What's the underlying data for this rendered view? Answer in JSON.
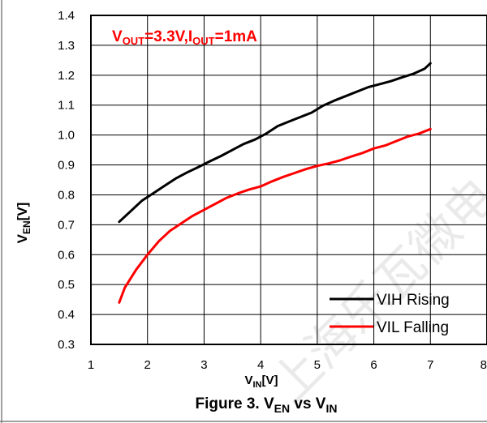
{
  "chart_data": {
    "type": "line",
    "title": "",
    "annotation": {
      "main": "V",
      "sub1": "OUT",
      "mid": "=3.3V,I",
      "sub2": "OUT",
      "end": "=1mA"
    },
    "xlabel": {
      "main": "V",
      "sub": "IN",
      "suffix": "[V]"
    },
    "ylabel": {
      "main": "V",
      "sub": "EN",
      "suffix": "[V]"
    },
    "xlim": [
      1,
      8
    ],
    "ylim": [
      0.3,
      1.4
    ],
    "x_ticks": [
      1,
      2,
      3,
      4,
      5,
      6,
      7,
      8
    ],
    "y_ticks": [
      0.3,
      0.4,
      0.5,
      0.6,
      0.7,
      0.8,
      0.9,
      1.0,
      1.1,
      1.2,
      1.3,
      1.4
    ],
    "grid": true,
    "legend_position": "bottom-right",
    "series": [
      {
        "name": "VIH Rising",
        "color": "#000000",
        "x": [
          1.5,
          1.7,
          1.9,
          2.1,
          2.3,
          2.5,
          2.7,
          2.9,
          3.1,
          3.3,
          3.5,
          3.7,
          3.9,
          4.1,
          4.3,
          4.5,
          4.7,
          4.9,
          5.1,
          5.3,
          5.5,
          5.7,
          5.9,
          6.1,
          6.3,
          6.5,
          6.7,
          6.9,
          7.0
        ],
        "y": [
          0.71,
          0.745,
          0.78,
          0.805,
          0.83,
          0.855,
          0.875,
          0.893,
          0.912,
          0.93,
          0.95,
          0.97,
          0.985,
          1.005,
          1.03,
          1.045,
          1.06,
          1.075,
          1.098,
          1.115,
          1.13,
          1.145,
          1.16,
          1.17,
          1.18,
          1.193,
          1.205,
          1.222,
          1.24
        ]
      },
      {
        "name": "VIL Falling",
        "color": "#ff0000",
        "x": [
          1.5,
          1.6,
          1.8,
          2.0,
          2.2,
          2.4,
          2.6,
          2.8,
          3.0,
          3.2,
          3.4,
          3.6,
          3.8,
          4.0,
          4.2,
          4.4,
          4.6,
          4.8,
          5.0,
          5.2,
          5.4,
          5.6,
          5.8,
          6.0,
          6.2,
          6.4,
          6.6,
          6.8,
          7.0
        ],
        "y": [
          0.44,
          0.49,
          0.55,
          0.6,
          0.645,
          0.68,
          0.705,
          0.73,
          0.75,
          0.77,
          0.79,
          0.805,
          0.818,
          0.828,
          0.845,
          0.86,
          0.873,
          0.886,
          0.897,
          0.905,
          0.915,
          0.928,
          0.94,
          0.955,
          0.965,
          0.98,
          0.995,
          1.005,
          1.02
        ]
      }
    ]
  },
  "caption": {
    "prefix": "Figure 3. V",
    "sub1": "EN",
    "mid": " vs V",
    "sub2": "IN"
  },
  "watermark": "上海乐瓦微电"
}
